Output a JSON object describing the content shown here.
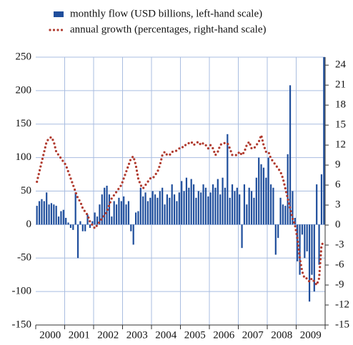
{
  "chart_data": {
    "type": "bar-line",
    "categories": [
      null,
      null,
      null,
      null,
      null,
      null,
      "2000",
      null,
      null,
      null,
      null,
      null,
      null,
      null,
      null,
      null,
      null,
      null,
      "2001",
      null,
      null,
      null,
      null,
      null,
      null,
      null,
      null,
      null,
      null,
      null,
      "2002",
      null,
      null,
      null,
      null,
      null,
      null,
      null,
      null,
      null,
      null,
      null,
      "2003",
      null,
      null,
      null,
      null,
      null,
      null,
      null,
      null,
      null,
      null,
      null,
      "2004",
      null,
      null,
      null,
      null,
      null,
      null,
      null,
      null,
      null,
      null,
      null,
      "2005",
      null,
      null,
      null,
      null,
      null,
      null,
      null,
      null,
      null,
      null,
      null,
      "2006",
      null,
      null,
      null,
      null,
      null,
      null,
      null,
      null,
      null,
      null,
      null,
      "2007",
      null,
      null,
      null,
      null,
      null,
      null,
      null,
      null,
      null,
      null,
      null,
      "2008",
      null,
      null,
      null,
      null,
      null,
      null,
      null,
      null,
      null,
      null,
      null,
      "2009",
      null,
      null,
      null,
      null,
      null
    ],
    "series": [
      {
        "name": "monthly flow (USD billions, left-hand scale)",
        "type": "bar",
        "color": "#1f4e9c",
        "axis": "y",
        "values": [
          28,
          35,
          38,
          35,
          48,
          30,
          32,
          30,
          28,
          12,
          20,
          22,
          10,
          3,
          -5,
          -8,
          48,
          -50,
          5,
          -10,
          -10,
          15,
          -5,
          5,
          18,
          12,
          30,
          45,
          55,
          58,
          45,
          12,
          35,
          30,
          40,
          35,
          42,
          30,
          35,
          -10,
          -30,
          18,
          20,
          55,
          42,
          48,
          35,
          40,
          50,
          45,
          40,
          50,
          55,
          30,
          45,
          40,
          60,
          45,
          35,
          48,
          65,
          50,
          70,
          55,
          68,
          60,
          40,
          50,
          48,
          60,
          55,
          42,
          48,
          60,
          55,
          68,
          45,
          70,
          55,
          135,
          40,
          60,
          50,
          55,
          45,
          -35,
          60,
          30,
          55,
          50,
          40,
          70,
          100,
          90,
          85,
          70,
          100,
          60,
          55,
          -45,
          -20,
          40,
          30,
          28,
          105,
          208,
          50,
          10,
          -55,
          -75,
          -15,
          -50,
          -40,
          -115,
          -75,
          -100,
          60,
          -60,
          75,
          250
        ]
      },
      {
        "name": "annual growth (percentages, right-hand scale)",
        "type": "line",
        "color": "#b03a2e",
        "axis": "y2",
        "values": [
          6.5,
          8,
          9.5,
          11,
          12.5,
          13,
          13.2,
          12.5,
          11,
          10.5,
          10,
          9.5,
          9,
          8,
          7,
          6,
          5,
          4,
          3.5,
          2.5,
          2,
          1.5,
          0.5,
          0,
          -0.5,
          0,
          0.5,
          1,
          1.5,
          2,
          3,
          4,
          4.5,
          5,
          5.5,
          6,
          7,
          8,
          9,
          10,
          10.3,
          9,
          7,
          6,
          5.5,
          6,
          6.5,
          7,
          7,
          7.5,
          8,
          9,
          10.5,
          11,
          10.5,
          10.5,
          11,
          11,
          11.2,
          11.5,
          11.5,
          12,
          12,
          12.3,
          12.5,
          12,
          12.3,
          12.5,
          12,
          12.3,
          12,
          11.5,
          12,
          11.5,
          10.5,
          11,
          12,
          12.3,
          12.3,
          12.3,
          11.5,
          10.5,
          10.5,
          10.5,
          11,
          10.5,
          11,
          12,
          12.5,
          11.5,
          11.5,
          12,
          12.5,
          13.5,
          12,
          11,
          11,
          10,
          9.5,
          9,
          8.5,
          8,
          7,
          5.5,
          4,
          2.5,
          1,
          0,
          -2,
          -5,
          -7,
          -8,
          -8,
          -8.5,
          -8,
          -8.5,
          -9,
          -8,
          -3,
          -2.5
        ]
      }
    ],
    "ylim": [
      -150,
      250
    ],
    "yticks": [
      -150,
      -100,
      -50,
      0,
      50,
      100,
      150,
      200,
      250
    ],
    "y2lim": [
      -15,
      25.2
    ],
    "y2ticks": [
      -15,
      -12,
      -9,
      -6,
      -3,
      0,
      3,
      6,
      9,
      12,
      15,
      18,
      21,
      24
    ],
    "grid": true,
    "legend": "top"
  }
}
